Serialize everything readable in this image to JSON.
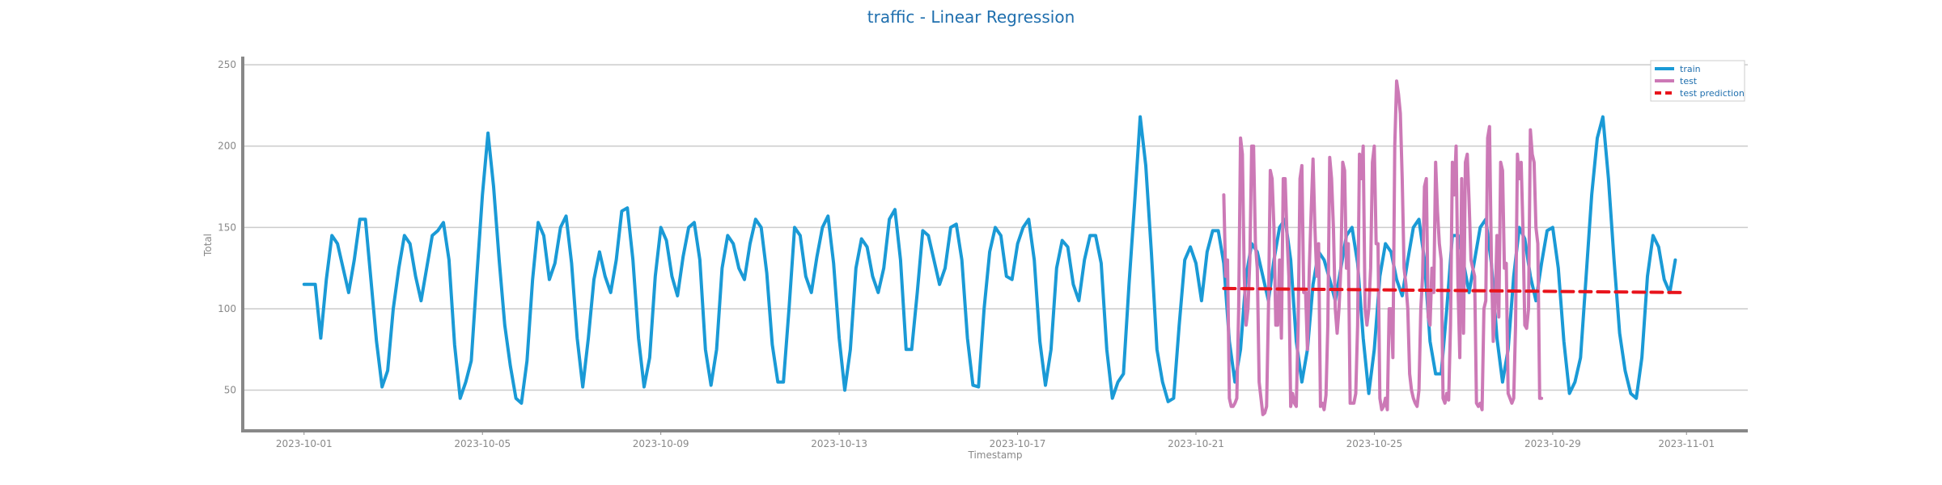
{
  "chart_data": {
    "type": "line",
    "title": "traffic - Linear Regression",
    "xlabel": "Timestamp",
    "ylabel": "Total",
    "x_axis_type": "date",
    "xlim": [
      "2023-09-29T15:00",
      "2023-11-02T09:00"
    ],
    "ylim": [
      25,
      255
    ],
    "yticks": [
      50,
      100,
      150,
      200,
      250
    ],
    "xticks": [
      "2023-10-01",
      "2023-10-05",
      "2023-10-09",
      "2023-10-13",
      "2023-10-17",
      "2023-10-21",
      "2023-10-25",
      "2023-10-29",
      "2023-11-01"
    ],
    "grid": "horizontal",
    "legend_position": "top-right",
    "series": [
      {
        "name": "train",
        "color": "#1a9ad6",
        "style": "solid",
        "x_start": "2023-10-01T00:00",
        "step_hours": 3,
        "values": [
          115,
          115,
          115,
          82,
          118,
          145,
          140,
          125,
          110,
          130,
          155,
          155,
          118,
          80,
          52,
          62,
          100,
          125,
          145,
          140,
          120,
          105,
          125,
          145,
          148,
          153,
          130,
          78,
          45,
          55,
          68,
          120,
          170,
          208,
          175,
          130,
          90,
          65,
          45,
          42,
          68,
          118,
          153,
          145,
          118,
          128,
          150,
          157,
          128,
          82,
          52,
          82,
          118,
          135,
          120,
          110,
          130,
          160,
          162,
          130,
          82,
          52,
          70,
          120,
          150,
          142,
          120,
          108,
          132,
          150,
          153,
          130,
          75,
          53,
          75,
          125,
          145,
          140,
          125,
          118,
          140,
          155,
          150,
          122,
          78,
          55,
          55,
          100,
          150,
          145,
          120,
          110,
          132,
          150,
          157,
          128,
          82,
          50,
          75,
          125,
          143,
          138,
          120,
          110,
          125,
          155,
          161,
          130,
          75,
          75,
          110,
          148,
          145,
          130,
          115,
          125,
          150,
          152,
          130,
          82,
          53,
          52,
          100,
          135,
          150,
          145,
          120,
          118,
          140,
          150,
          155,
          130,
          80,
          53,
          75,
          125,
          142,
          138,
          115,
          105,
          130,
          145,
          145,
          128,
          75,
          45,
          55,
          60,
          115,
          165,
          218,
          188,
          135,
          75,
          55,
          43,
          45,
          90,
          130,
          138,
          128,
          105,
          135,
          148,
          148,
          128,
          80,
          55,
          75,
          120,
          140,
          135,
          120,
          105,
          130,
          150,
          155,
          130,
          80,
          55,
          75,
          115,
          135,
          130,
          118,
          105,
          125,
          145,
          150,
          128,
          82,
          48,
          75,
          120,
          140,
          135,
          118,
          108,
          130,
          150,
          155,
          130,
          80,
          60,
          60,
          100,
          145,
          145,
          128,
          110,
          130,
          150,
          155,
          128,
          82,
          55,
          75,
          120,
          150,
          143,
          120,
          105,
          128,
          148,
          150,
          125,
          80,
          48,
          55,
          70,
          120,
          170,
          205,
          218,
          180,
          130,
          85,
          62,
          48,
          45,
          70,
          120,
          145,
          138,
          118,
          110,
          130
        ]
      },
      {
        "name": "test",
        "color": "#cc79b6",
        "style": "solid",
        "x_start": "2023-10-21T15:00",
        "step_hours": 1,
        "values": [
          170,
          120,
          130,
          45,
          40,
          40,
          42,
          45,
          100,
          205,
          195,
          120,
          90,
          100,
          130,
          200,
          200,
          140,
          125,
          55,
          45,
          35,
          36,
          40,
          100,
          185,
          180,
          150,
          90,
          90,
          130,
          82,
          180,
          180,
          145,
          120,
          40,
          48,
          42,
          40,
          90,
          180,
          188,
          110,
          110,
          75,
          125,
          160,
          192,
          150,
          120,
          140,
          40,
          42,
          38,
          47,
          90,
          193,
          180,
          150,
          100,
          85,
          100,
          125,
          190,
          185,
          125,
          140,
          42,
          42,
          42,
          48,
          90,
          195,
          180,
          200,
          100,
          90,
          100,
          125,
          190,
          200,
          140,
          140,
          45,
          38,
          40,
          45,
          38,
          100,
          100,
          70,
          200,
          240,
          232,
          220,
          180,
          125,
          115,
          100,
          60,
          50,
          45,
          42,
          40,
          50,
          100,
          120,
          175,
          180,
          95,
          90,
          125,
          110,
          190,
          160,
          140,
          130,
          45,
          42,
          48,
          44,
          90,
          190,
          170,
          200,
          115,
          70,
          180,
          85,
          190,
          195,
          165,
          130,
          125,
          120,
          42,
          40,
          42,
          38,
          100,
          105,
          205,
          212,
          130,
          80,
          100,
          145,
          95,
          190,
          185,
          125,
          128,
          48,
          45,
          42,
          45,
          90,
          195,
          180,
          190,
          150,
          90,
          88,
          100,
          210,
          195,
          190,
          150,
          140,
          45,
          45
        ]
      },
      {
        "name": "test prediction",
        "color": "#e8141c",
        "style": "dashed",
        "x": [
          "2023-10-21T15:00",
          "2023-10-31T23:00"
        ],
        "values": [
          112.5,
          110
        ]
      }
    ]
  }
}
